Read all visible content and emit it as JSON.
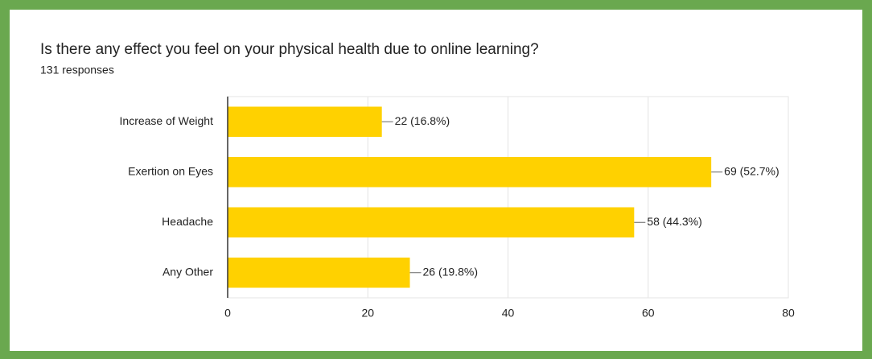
{
  "chart_data": {
    "type": "bar",
    "orientation": "horizontal",
    "title": "Is there any effect you feel on your physical health due to online learning?",
    "subtitle": "131 responses",
    "categories": [
      "Increase of Weight",
      "Exertion on Eyes",
      "Headache",
      "Any Other"
    ],
    "values": [
      22,
      69,
      58,
      26
    ],
    "value_labels": [
      "22 (16.8%)",
      "69 (52.7%)",
      "58 (44.3%)",
      "26 (19.8%)"
    ],
    "color": "#ffd100",
    "xlim": [
      0,
      80
    ],
    "xticks": [
      0,
      20,
      40,
      60,
      80
    ],
    "grid": true
  }
}
